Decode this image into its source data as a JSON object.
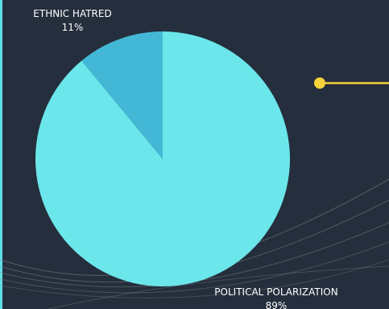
{
  "colors": {
    "background": "#252e3d",
    "accent_line": "#5fe0e6",
    "connector": "#f5d33a",
    "wave": "#7f8a86"
  },
  "chart_data": {
    "type": "pie",
    "title": "",
    "slices": [
      {
        "label": "POLITICAL POLARIZATION",
        "value": 89,
        "value_label": "89%",
        "color": "#6be6ea"
      },
      {
        "label": "ETHNIC HATRED",
        "value": 11,
        "value_label": "11%",
        "color": "#43b8d6"
      }
    ]
  }
}
